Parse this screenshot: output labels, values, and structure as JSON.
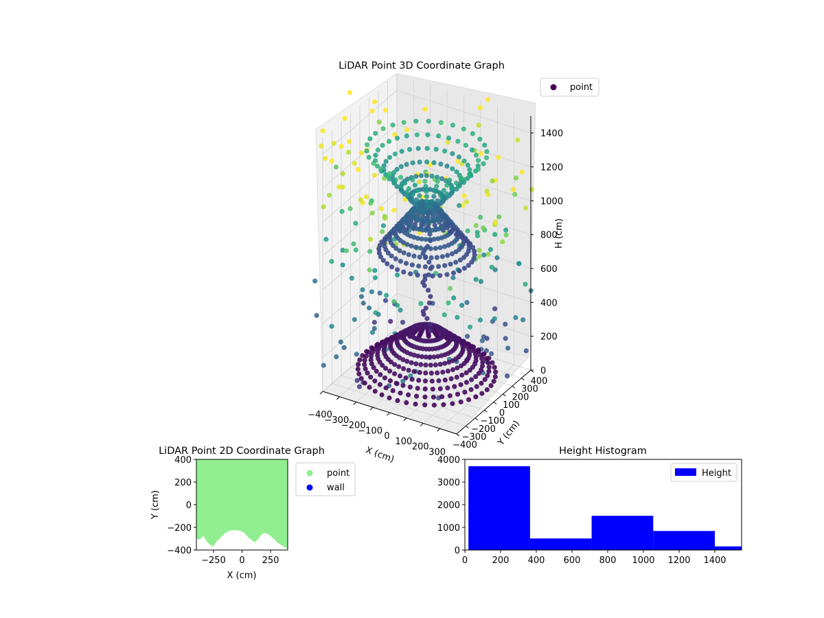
{
  "chart_data": [
    {
      "type": "scatter3d",
      "title": "LiDAR Point 3D Coordinate Graph",
      "xlabel": "X (cm)",
      "ylabel": "Y (cm)",
      "zlabel": "H (cm)",
      "x_ticks": [
        "−400",
        "−300",
        "−200",
        "−100",
        "0",
        "100",
        "200",
        "300"
      ],
      "y_ticks": [
        "−400",
        "−300",
        "−200",
        "−100",
        "0",
        "100",
        "200",
        "300",
        "400"
      ],
      "z_ticks": [
        "0",
        "200",
        "400",
        "600",
        "800",
        "1000",
        "1200",
        "1400"
      ],
      "xlim": [
        -400,
        400
      ],
      "ylim": [
        -400,
        400
      ],
      "zlim": [
        1500,
        0
      ],
      "z_inverted": true,
      "colormap": "viridis",
      "series": [
        {
          "name": "point",
          "color": "#440154"
        }
      ],
      "legend": {
        "position": "top-right",
        "entries": [
          "point"
        ]
      },
      "grid": true
    },
    {
      "type": "scatter",
      "title": "LiDAR Point 2D Coordinate Graph",
      "xlabel": "X (cm)",
      "ylabel": "Y (cm)",
      "x_ticks": [
        "−250",
        "0",
        "250"
      ],
      "y_ticks": [
        "400",
        "200",
        "0",
        "−200",
        "−400"
      ],
      "xlim": [
        -400,
        400
      ],
      "ylim": [
        -400,
        400
      ],
      "series": [
        {
          "name": "point",
          "color": "#90ee90"
        },
        {
          "name": "wall",
          "color": "#0000ff"
        }
      ],
      "legend": {
        "position": "outside-right",
        "entries": [
          "point",
          "wall"
        ]
      }
    },
    {
      "type": "bar",
      "title": "Height Histogram",
      "xlabel": "",
      "ylabel": "",
      "bins": [
        {
          "start": 20,
          "end": 365,
          "count": 3700
        },
        {
          "start": 365,
          "end": 710,
          "count": 510
        },
        {
          "start": 710,
          "end": 1055,
          "count": 1510
        },
        {
          "start": 1055,
          "end": 1400,
          "count": 840
        },
        {
          "start": 1400,
          "end": 1745,
          "count": 160
        }
      ],
      "x_ticks": [
        "0",
        "200",
        "400",
        "600",
        "800",
        "1000",
        "1200",
        "1400"
      ],
      "y_ticks": [
        "0",
        "1000",
        "2000",
        "3000",
        "4000"
      ],
      "xlim": [
        0,
        1550
      ],
      "ylim": [
        0,
        4000
      ],
      "series": [
        {
          "name": "Height",
          "color": "#0000ff"
        }
      ],
      "legend": {
        "position": "top-right",
        "entries": [
          "Height"
        ]
      }
    }
  ]
}
